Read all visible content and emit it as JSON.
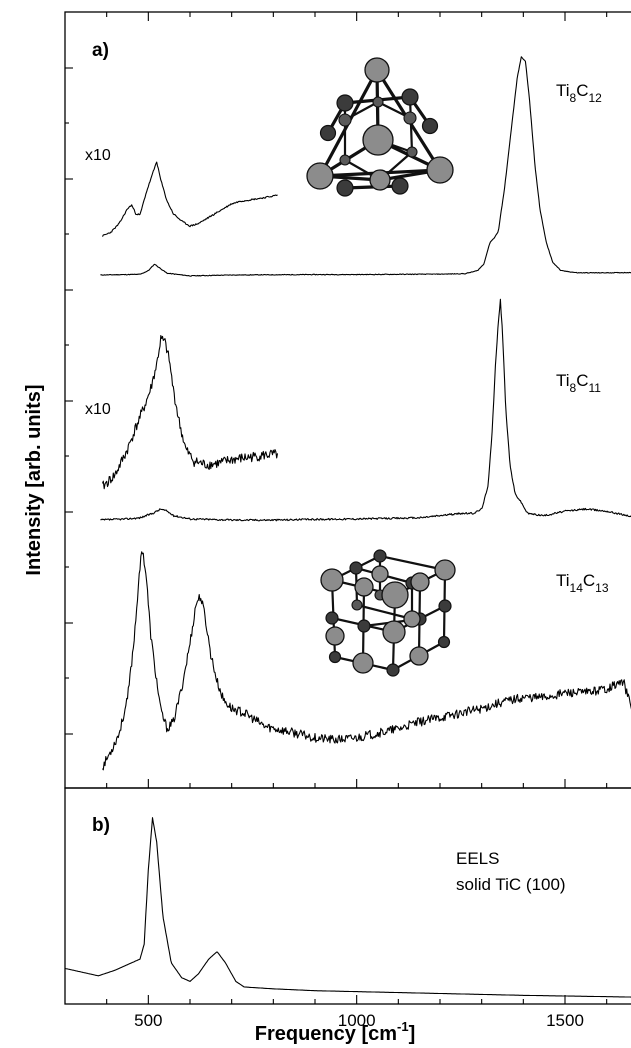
{
  "chart_data": {
    "type": "line",
    "xlabel": "Frequency [cm",
    "xlabel_sup": "-1",
    "xlabel_end": "]",
    "ylabel": "Intensity [arb. units]",
    "xlim": [
      300,
      1680
    ],
    "xticks": [
      500,
      1000,
      1500
    ],
    "xtick_labels": [
      "500",
      "1000",
      "1500"
    ],
    "panels": [
      {
        "label": "a)",
        "series": [
          {
            "formula": {
              "base1": "Ti",
              "sub1": "8",
              "base2": "C",
              "sub2": "12"
            },
            "baseline": 0.05,
            "points": [
              [
                385,
                0
              ],
              [
                480,
                0.003
              ],
              [
                500,
                0.02
              ],
              [
                515,
                0.05
              ],
              [
                525,
                0.035
              ],
              [
                545,
                0.008
              ],
              [
                600,
                -0.004
              ],
              [
                700,
                0
              ],
              [
                800,
                0.001
              ],
              [
                900,
                0.002
              ],
              [
                1000,
                0.002
              ],
              [
                1100,
                0.003
              ],
              [
                1200,
                0.004
              ],
              [
                1260,
                0.006
              ],
              [
                1290,
                0.02
              ],
              [
                1305,
                0.05
              ],
              [
                1320,
                0.15
              ],
              [
                1330,
                0.17
              ],
              [
                1340,
                0.2
              ],
              [
                1355,
                0.4
              ],
              [
                1370,
                0.65
              ],
              [
                1385,
                0.9
              ],
              [
                1395,
                1.0
              ],
              [
                1405,
                0.98
              ],
              [
                1415,
                0.8
              ],
              [
                1428,
                0.5
              ],
              [
                1440,
                0.3
              ],
              [
                1455,
                0.15
              ],
              [
                1470,
                0.06
              ],
              [
                1490,
                0.02
              ],
              [
                1530,
                0.01
              ],
              [
                1600,
                0.01
              ],
              [
                1680,
                0.012
              ]
            ],
            "inset": {
              "label": "x10",
              "points": [
                [
                  390,
                  0.0
                ],
                [
                  410,
                  0.03
                ],
                [
                  430,
                  0.1
                ],
                [
                  450,
                  0.22
                ],
                [
                  460,
                  0.25
                ],
                [
                  470,
                  0.18
                ],
                [
                  480,
                  0.17
                ],
                [
                  495,
                  0.35
                ],
                [
                  510,
                  0.5
                ],
                [
                  520,
                  0.6
                ],
                [
                  530,
                  0.45
                ],
                [
                  545,
                  0.28
                ],
                [
                  560,
                  0.18
                ],
                [
                  580,
                  0.12
                ],
                [
                  600,
                  0.08
                ],
                [
                  620,
                  0.1
                ],
                [
                  650,
                  0.16
                ],
                [
                  680,
                  0.22
                ],
                [
                  700,
                  0.26
                ],
                [
                  720,
                  0.28
                ],
                [
                  740,
                  0.29
                ],
                [
                  760,
                  0.3
                ],
                [
                  780,
                  0.31
                ],
                [
                  810,
                  0.33
                ]
              ]
            }
          },
          {
            "formula": {
              "base1": "Ti",
              "sub1": "8",
              "base2": "C",
              "sub2": "11"
            },
            "baseline": 0.05,
            "points": [
              [
                385,
                0
              ],
              [
                450,
                0.005
              ],
              [
                480,
                0.01
              ],
              [
                510,
                0.03
              ],
              [
                530,
                0.05
              ],
              [
                545,
                0.04
              ],
              [
                560,
                0.02
              ],
              [
                600,
                0.005
              ],
              [
                700,
                0
              ],
              [
                800,
                0
              ],
              [
                900,
                0.003
              ],
              [
                1000,
                0.005
              ],
              [
                1100,
                0.008
              ],
              [
                1150,
                0.01
              ],
              [
                1200,
                0.02
              ],
              [
                1250,
                0.03
              ],
              [
                1280,
                0.03
              ],
              [
                1300,
                0.05
              ],
              [
                1315,
                0.15
              ],
              [
                1325,
                0.4
              ],
              [
                1333,
                0.7
              ],
              [
                1340,
                0.9
              ],
              [
                1345,
                1.0
              ],
              [
                1350,
                0.85
              ],
              [
                1358,
                0.5
              ],
              [
                1368,
                0.25
              ],
              [
                1380,
                0.12
              ],
              [
                1395,
                0.08
              ],
              [
                1410,
                0.03
              ],
              [
                1450,
                0.02
              ],
              [
                1500,
                0.04
              ],
              [
                1550,
                0.05
              ],
              [
                1600,
                0.04
              ],
              [
                1650,
                0.02
              ],
              [
                1680,
                0.0
              ]
            ],
            "inset": {
              "label": "x10",
              "points": [
                [
                  390,
                  0.03
                ],
                [
                  420,
                  0.1
                ],
                [
                  450,
                  0.25
                ],
                [
                  470,
                  0.38
                ],
                [
                  490,
                  0.5
                ],
                [
                  505,
                  0.6
                ],
                [
                  520,
                  0.75
                ],
                [
                  530,
                  0.9
                ],
                [
                  540,
                  0.88
                ],
                [
                  550,
                  0.78
                ],
                [
                  560,
                  0.6
                ],
                [
                  575,
                  0.4
                ],
                [
                  590,
                  0.25
                ],
                [
                  610,
                  0.18
                ],
                [
                  640,
                  0.16
                ],
                [
                  670,
                  0.17
                ],
                [
                  700,
                  0.19
                ],
                [
                  730,
                  0.2
                ],
                [
                  760,
                  0.21
                ],
                [
                  790,
                  0.22
                ],
                [
                  810,
                  0.22
                ]
              ]
            }
          },
          {
            "formula": {
              "base1": "Ti",
              "sub1": "14",
              "base2": "C",
              "sub2": "13"
            },
            "baseline": 0.0,
            "points": [
              [
                390,
                0.0
              ],
              [
                410,
                0.07
              ],
              [
                430,
                0.15
              ],
              [
                450,
                0.3
              ],
              [
                465,
                0.55
              ],
              [
                475,
                0.78
              ],
              [
                485,
                0.98
              ],
              [
                495,
                0.85
              ],
              [
                505,
                0.6
              ],
              [
                515,
                0.45
              ],
              [
                530,
                0.25
              ],
              [
                545,
                0.17
              ],
              [
                560,
                0.2
              ],
              [
                580,
                0.35
              ],
              [
                600,
                0.55
              ],
              [
                615,
                0.73
              ],
              [
                625,
                0.76
              ],
              [
                635,
                0.68
              ],
              [
                650,
                0.5
              ],
              [
                665,
                0.38
              ],
              [
                680,
                0.3
              ],
              [
                700,
                0.26
              ],
              [
                730,
                0.24
              ],
              [
                780,
                0.18
              ],
              [
                830,
                0.16
              ],
              [
                900,
                0.13
              ],
              [
                950,
                0.12
              ],
              [
                1000,
                0.13
              ],
              [
                1050,
                0.15
              ],
              [
                1100,
                0.17
              ],
              [
                1150,
                0.2
              ],
              [
                1200,
                0.22
              ],
              [
                1250,
                0.24
              ],
              [
                1300,
                0.26
              ],
              [
                1350,
                0.29
              ],
              [
                1400,
                0.31
              ],
              [
                1450,
                0.31
              ],
              [
                1500,
                0.33
              ],
              [
                1550,
                0.33
              ],
              [
                1600,
                0.35
              ],
              [
                1640,
                0.38
              ],
              [
                1670,
                0.2
              ],
              [
                1680,
                0.22
              ]
            ]
          }
        ]
      },
      {
        "label": "b)",
        "annotation_lines": [
          "EELS",
          "solid TiC (100)"
        ],
        "series": [
          {
            "points": [
              [
                300,
                0.17
              ],
              [
                340,
                0.15
              ],
              [
                380,
                0.13
              ],
              [
                420,
                0.16
              ],
              [
                460,
                0.2
              ],
              [
                480,
                0.22
              ],
              [
                490,
                0.3
              ],
              [
                500,
                0.7
              ],
              [
                510,
                0.98
              ],
              [
                520,
                0.85
              ],
              [
                535,
                0.45
              ],
              [
                555,
                0.2
              ],
              [
                580,
                0.12
              ],
              [
                600,
                0.1
              ],
              [
                620,
                0.14
              ],
              [
                645,
                0.22
              ],
              [
                665,
                0.26
              ],
              [
                685,
                0.2
              ],
              [
                710,
                0.1
              ],
              [
                730,
                0.07
              ],
              [
                800,
                0.06
              ],
              [
                900,
                0.05
              ],
              [
                1000,
                0.045
              ],
              [
                1200,
                0.035
              ],
              [
                1400,
                0.025
              ],
              [
                1600,
                0.018
              ],
              [
                1680,
                0.015
              ]
            ]
          }
        ]
      }
    ]
  }
}
